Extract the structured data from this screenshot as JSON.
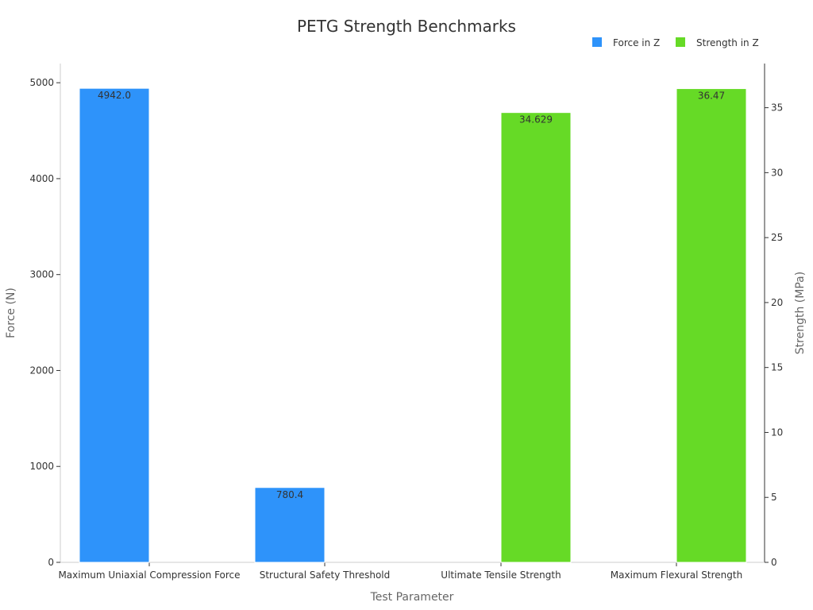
{
  "chart_data": {
    "type": "bar",
    "title": "PETG Strength Benchmarks",
    "xlabel": "Test Parameter",
    "ylabel": "Force (N)",
    "y2label": "Strength (MPa)",
    "categories": [
      "Maximum Uniaxial Compression Force",
      "Structural Safety Threshold",
      "Ultimate Tensile Strength",
      "Maximum Flexural Strength"
    ],
    "series": [
      {
        "name": "Force in Z",
        "axis": "left",
        "color": "#2e93fa",
        "values": [
          4942.0,
          780.4,
          null,
          null
        ],
        "labels": [
          "4942.0",
          "780.4",
          "",
          ""
        ]
      },
      {
        "name": "Strength in Z",
        "axis": "right",
        "color": "#66da26",
        "values": [
          null,
          null,
          34.629,
          36.47
        ],
        "labels": [
          "",
          "",
          "34.629",
          "36.47"
        ]
      }
    ],
    "ylim": [
      0,
      5200
    ],
    "y2lim": [
      0,
      38.4
    ],
    "yticks": [
      "0",
      "1000",
      "2000",
      "3000",
      "4000",
      "5000"
    ],
    "y2ticks": [
      "0",
      "5",
      "10",
      "15",
      "20",
      "25",
      "30",
      "35"
    ],
    "legend_position": "top-right",
    "grid": false
  }
}
